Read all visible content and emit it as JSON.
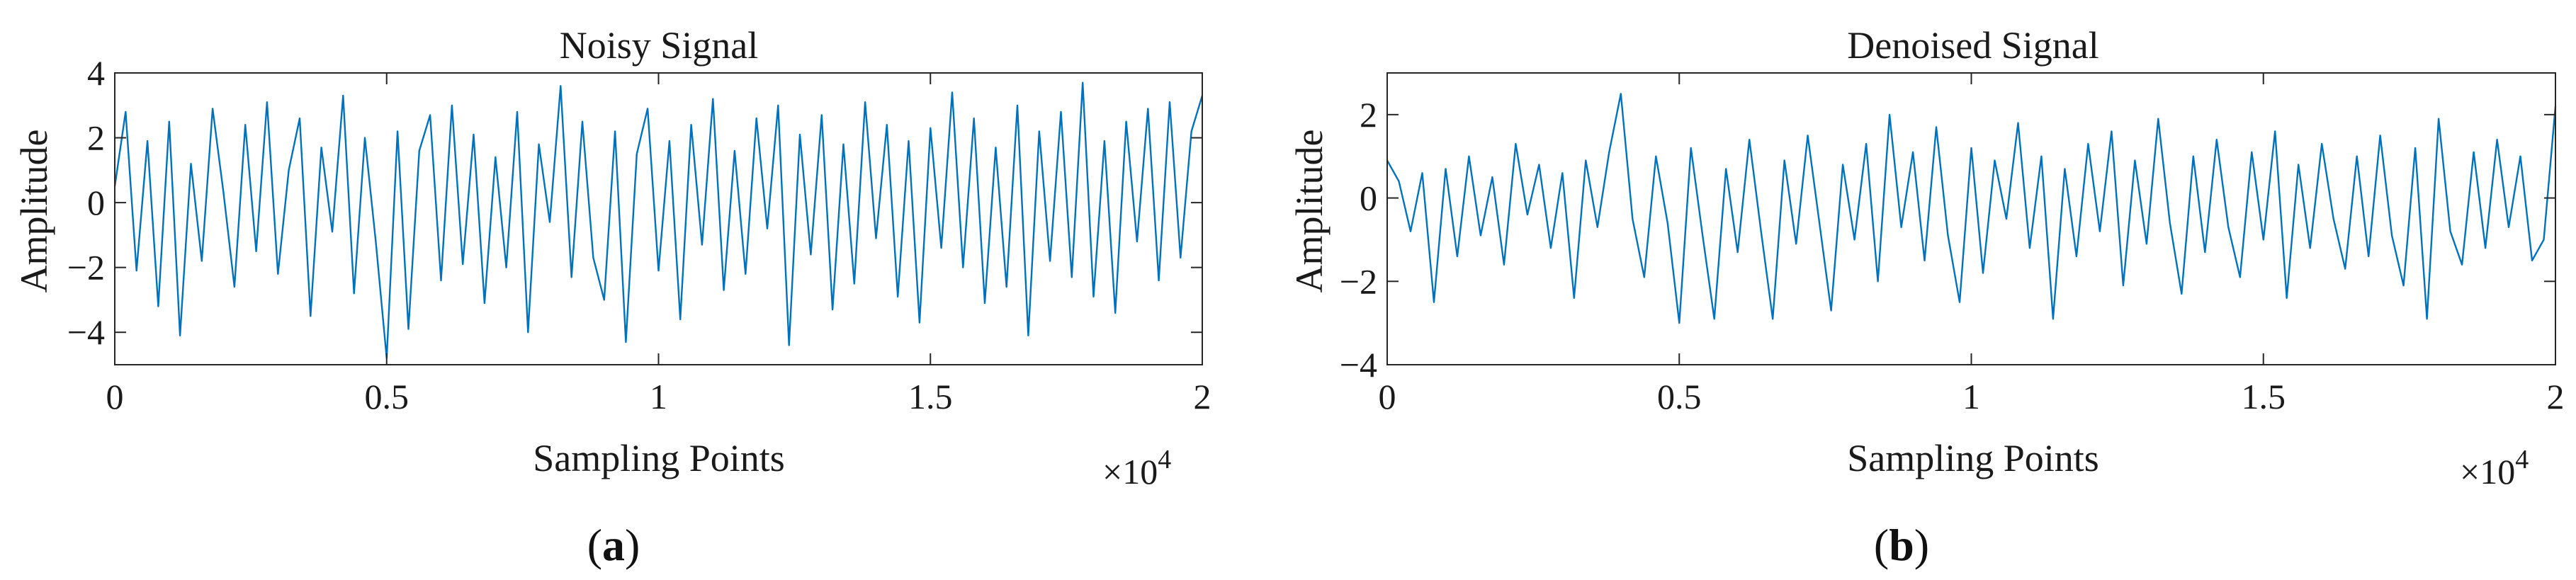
{
  "chart_data": [
    {
      "type": "line",
      "title": "Noisy Signal",
      "xlabel": "Sampling Points",
      "ylabel": "Amplitude",
      "x_multiplier": "×10",
      "x_multiplier_exp": "4",
      "xlim": [
        0,
        20000
      ],
      "ylim": [
        -5,
        4
      ],
      "xticks": [
        0,
        0.5,
        1,
        1.5,
        2
      ],
      "xtick_labels": [
        "0",
        "0.5",
        "1",
        "1.5",
        "2"
      ],
      "yticks": [
        -4,
        -2,
        0,
        2,
        4
      ],
      "ytick_labels": [
        "−4",
        "−2",
        "0",
        "2",
        "4"
      ],
      "grid": false,
      "series": [
        {
          "color": "#0072bd",
          "x": [
            0,
            200,
            400,
            600,
            800,
            1000,
            1200,
            1400,
            1600,
            1800,
            2000,
            2200,
            2400,
            2600,
            2800,
            3000,
            3200,
            3400,
            3600,
            3800,
            4000,
            4200,
            4400,
            4600,
            4800,
            5000,
            5200,
            5400,
            5600,
            5800,
            6000,
            6200,
            6400,
            6600,
            6800,
            7000,
            7200,
            7400,
            7600,
            7800,
            8000,
            8200,
            8400,
            8600,
            8800,
            9000,
            9200,
            9400,
            9600,
            9800,
            10000,
            10200,
            10400,
            10600,
            10800,
            11000,
            11200,
            11400,
            11600,
            11800,
            12000,
            12200,
            12400,
            12600,
            12800,
            13000,
            13200,
            13400,
            13600,
            13800,
            14000,
            14200,
            14400,
            14600,
            14800,
            15000,
            15200,
            15400,
            15600,
            15800,
            16000,
            16200,
            16400,
            16600,
            16800,
            17000,
            17200,
            17400,
            17600,
            17800,
            18000,
            18200,
            18400,
            18600,
            18800,
            19000,
            19200,
            19400,
            19600,
            19800,
            20000
          ],
          "y": [
            0.5,
            2.8,
            -2.1,
            1.9,
            -3.2,
            2.5,
            -4.1,
            1.2,
            -1.8,
            2.9,
            0.3,
            -2.6,
            2.4,
            -1.5,
            3.1,
            -2.2,
            1.0,
            2.6,
            -3.5,
            1.7,
            -0.9,
            3.3,
            -2.8,
            2.0,
            -1.2,
            -4.8,
            2.2,
            -3.9,
            1.6,
            2.7,
            -2.4,
            3.0,
            -1.9,
            2.1,
            -3.1,
            1.4,
            -2.0,
            2.8,
            -4.0,
            1.8,
            -0.6,
            3.6,
            -2.3,
            2.5,
            -1.7,
            -3.0,
            2.2,
            -4.3,
            1.5,
            2.9,
            -2.1,
            1.9,
            -3.6,
            2.4,
            -1.3,
            3.2,
            -2.7,
            1.6,
            -2.2,
            2.6,
            -0.8,
            3.0,
            -4.4,
            2.1,
            -1.6,
            2.7,
            -3.3,
            1.8,
            -2.5,
            3.1,
            -1.1,
            2.4,
            -2.9,
            1.9,
            -3.7,
            2.3,
            -1.4,
            3.4,
            -2.0,
            2.6,
            -3.1,
            1.7,
            -2.6,
            3.0,
            -4.1,
            2.2,
            -1.8,
            2.8,
            -2.3,
            3.7,
            -2.9,
            1.9,
            -3.4,
            2.5,
            -1.2,
            2.9,
            -2.4,
            3.1,
            -1.7,
            2.2,
            3.3
          ]
        }
      ]
    },
    {
      "type": "line",
      "title": "Denoised Signal",
      "xlabel": "Sampling Points",
      "ylabel": "Amplitude",
      "x_multiplier": "×10",
      "x_multiplier_exp": "4",
      "xlim": [
        0,
        20000
      ],
      "ylim": [
        -4,
        3
      ],
      "xticks": [
        0,
        0.5,
        1,
        1.5,
        2
      ],
      "xtick_labels": [
        "0",
        "0.5",
        "1",
        "1.5",
        "2"
      ],
      "yticks": [
        -4,
        -2,
        0,
        2
      ],
      "ytick_labels": [
        "−4",
        "−2",
        "0",
        "2"
      ],
      "grid": false,
      "series": [
        {
          "color": "#0072bd",
          "x": [
            0,
            200,
            400,
            600,
            800,
            1000,
            1200,
            1400,
            1600,
            1800,
            2000,
            2200,
            2400,
            2600,
            2800,
            3000,
            3200,
            3400,
            3600,
            3800,
            4000,
            4200,
            4400,
            4600,
            4800,
            5000,
            5200,
            5400,
            5600,
            5800,
            6000,
            6200,
            6400,
            6600,
            6800,
            7000,
            7200,
            7400,
            7600,
            7800,
            8000,
            8200,
            8400,
            8600,
            8800,
            9000,
            9200,
            9400,
            9600,
            9800,
            10000,
            10200,
            10400,
            10600,
            10800,
            11000,
            11200,
            11400,
            11600,
            11800,
            12000,
            12200,
            12400,
            12600,
            12800,
            13000,
            13200,
            13400,
            13600,
            13800,
            14000,
            14200,
            14400,
            14600,
            14800,
            15000,
            15200,
            15400,
            15600,
            15800,
            16000,
            16200,
            16400,
            16600,
            16800,
            17000,
            17200,
            17400,
            17600,
            17800,
            18000,
            18200,
            18400,
            18600,
            18800,
            19000,
            19200,
            19400,
            19600,
            19800,
            20000
          ],
          "y": [
            0.9,
            0.4,
            -0.8,
            0.6,
            -2.5,
            0.7,
            -1.4,
            1.0,
            -0.9,
            0.5,
            -1.6,
            1.3,
            -0.4,
            0.8,
            -1.2,
            0.6,
            -2.4,
            0.9,
            -0.7,
            1.1,
            2.5,
            -0.5,
            -1.9,
            1.0,
            -0.6,
            -3.0,
            1.2,
            -0.9,
            -2.9,
            0.7,
            -1.3,
            1.4,
            -0.8,
            -2.9,
            0.9,
            -1.1,
            1.5,
            -0.6,
            -2.7,
            0.8,
            -1.0,
            1.3,
            -2.0,
            2.0,
            -0.7,
            1.1,
            -1.5,
            1.7,
            -0.9,
            -2.5,
            1.2,
            -1.8,
            0.9,
            -0.5,
            1.8,
            -1.2,
            1.0,
            -2.9,
            0.7,
            -1.4,
            1.3,
            -0.8,
            1.6,
            -2.1,
            0.9,
            -1.1,
            1.9,
            -0.6,
            -2.3,
            1.0,
            -1.3,
            1.4,
            -0.7,
            -1.9,
            1.1,
            -1.0,
            1.6,
            -2.4,
            0.8,
            -1.2,
            1.3,
            -0.5,
            -1.7,
            1.0,
            -1.4,
            1.5,
            -0.9,
            -2.1,
            1.2,
            -2.9,
            1.9,
            -0.8,
            -1.6,
            1.1,
            -1.2,
            1.4,
            -0.7,
            1.0,
            -1.5,
            -1.0,
            2.2
          ]
        }
      ]
    }
  ],
  "panels": [
    {
      "open": "(",
      "letter": "a",
      "close": ")"
    },
    {
      "open": "(",
      "letter": "b",
      "close": ")"
    }
  ]
}
